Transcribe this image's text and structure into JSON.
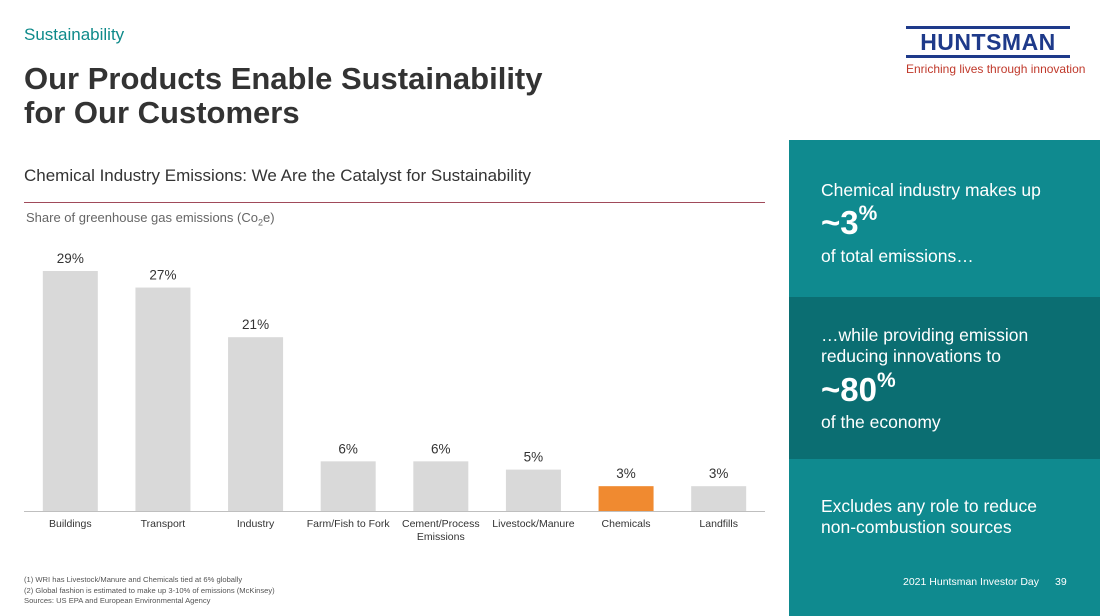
{
  "header": {
    "section": "Sustainability",
    "title_line1": "Our Products Enable Sustainability",
    "title_line2": "for Our Customers"
  },
  "logo": {
    "wordmark": "HUNTSMAN",
    "tagline": "Enriching lives through innovation"
  },
  "subheading": "Chemical Industry Emissions: We Are the Catalyst for Sustainability",
  "share_label_pre": "Share of greenhouse gas emissions (Co",
  "share_label_sub": "2",
  "share_label_post": "e)",
  "chart_data": {
    "type": "bar",
    "title": "",
    "xlabel": "",
    "ylabel": "",
    "ylim": [
      0,
      29
    ],
    "grid": false,
    "categories": [
      [
        "Buildings"
      ],
      [
        "Transport"
      ],
      [
        "Industry"
      ],
      [
        "Farm/Fish to Fork"
      ],
      [
        "Cement/Process",
        "Emissions"
      ],
      [
        "Livestock/Manure"
      ],
      [
        "Chemicals"
      ],
      [
        "Landfills"
      ]
    ],
    "values": [
      29,
      27,
      21,
      6,
      6,
      5,
      3,
      3
    ],
    "value_labels": [
      "29%",
      "27%",
      "21%",
      "6%",
      "6%",
      "5%",
      "3%",
      "3%"
    ],
    "highlight_index": 6,
    "colors": {
      "bar": "#d9d9d9",
      "highlight": "#f08a30",
      "axis": "#bfbfbf"
    }
  },
  "panels": {
    "p1_line": "Chemical industry makes up",
    "p1_big": "~3",
    "p1_unit": "%",
    "p1_tail": "of total emissions…",
    "p2_line1": "…while providing emission",
    "p2_line2": "reducing innovations to",
    "p2_big": "~80",
    "p2_unit": "%",
    "p2_tail": "of the economy",
    "p3_line1": "Excludes any role to reduce",
    "p3_line2": "non-combustion sources"
  },
  "footer": {
    "event": "2021 Huntsman Investor Day",
    "page": "39",
    "note1": "(1) WRI has Livestock/Manure and Chemicals tied at 6% globally",
    "note2": "(2) Global fashion is estimated to make up 3-10% of emissions (McKinsey)",
    "note3": "Sources:  US EPA and European Environmental Agency"
  },
  "colors": {
    "teal": "#0f8a8f",
    "teal_dark": "#0b6e72",
    "brand_blue": "#1e3a8a",
    "brand_red": "#c0392b"
  }
}
